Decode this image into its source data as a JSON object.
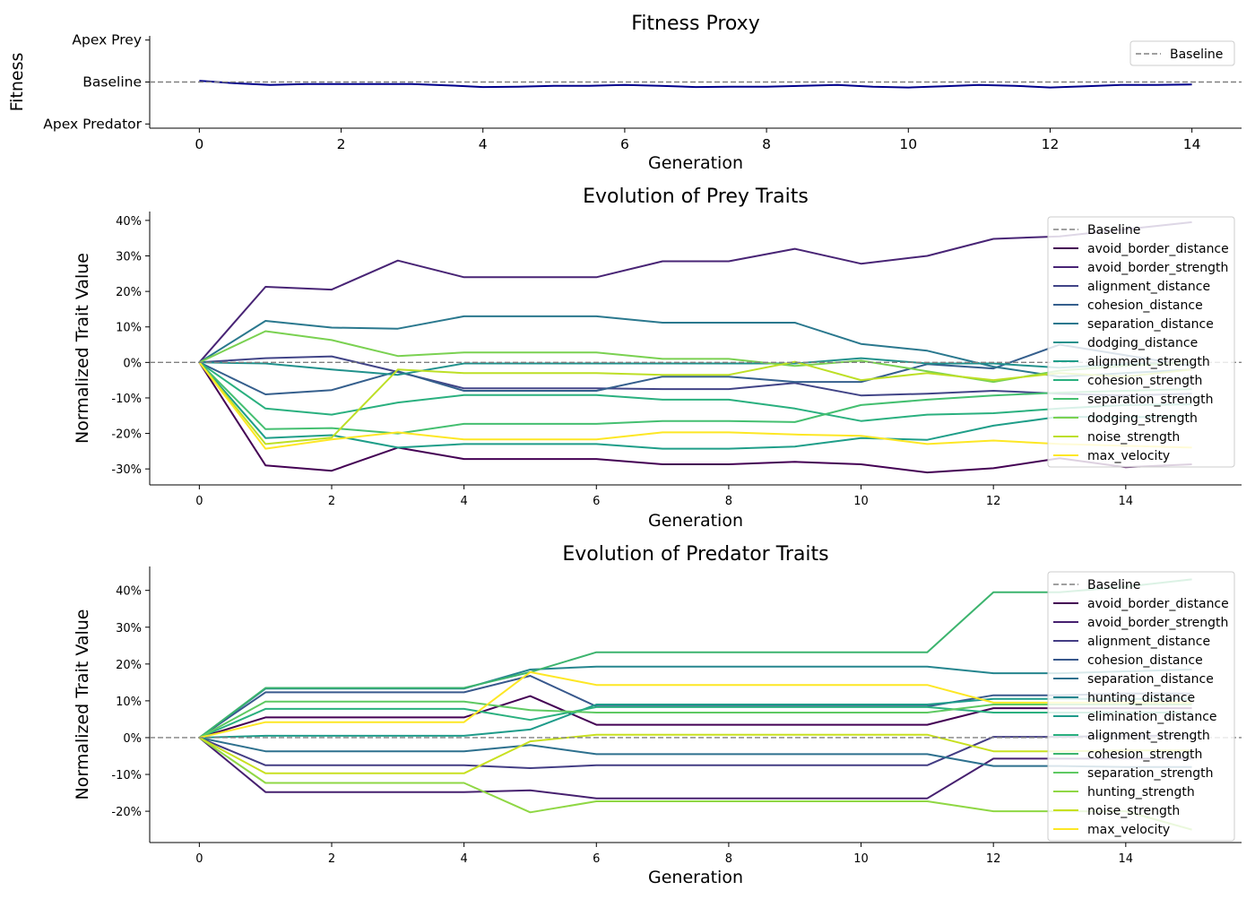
{
  "chart_data": [
    {
      "type": "line",
      "title": "Fitness Proxy",
      "xlabel": "Generation",
      "ylabel": "Fitness",
      "xlim": [
        -0.7,
        14.7
      ],
      "ylim": [
        -1.1,
        1.1
      ],
      "xticks": [
        0,
        2,
        4,
        6,
        8,
        10,
        12,
        14
      ],
      "yticks": [
        {
          "value": 1,
          "label": "Apex Prey"
        },
        {
          "value": 0,
          "label": "Baseline"
        },
        {
          "value": -1,
          "label": "Apex Predator"
        }
      ],
      "baseline": {
        "name": "Baseline",
        "value": 0,
        "color": "#808080"
      },
      "legend": "top-right",
      "series": [
        {
          "color": "#00008b",
          "x": [
            0,
            0.5,
            1,
            1.5,
            2,
            2.5,
            3,
            3.5,
            4,
            4.5,
            5,
            5.5,
            6,
            6.5,
            7,
            7.5,
            8,
            8.5,
            9,
            9.5,
            10,
            10.5,
            11,
            11.5,
            12,
            12.5,
            13,
            13.5,
            14
          ],
          "y": [
            0.03,
            -0.03,
            -0.07,
            -0.05,
            -0.05,
            -0.05,
            -0.05,
            -0.08,
            -0.12,
            -0.11,
            -0.09,
            -0.09,
            -0.07,
            -0.09,
            -0.12,
            -0.11,
            -0.11,
            -0.09,
            -0.07,
            -0.11,
            -0.13,
            -0.1,
            -0.07,
            -0.09,
            -0.13,
            -0.1,
            -0.07,
            -0.07,
            -0.06
          ]
        }
      ]
    },
    {
      "type": "line",
      "title": "Evolution of Prey Traits",
      "xlabel": "Generation",
      "ylabel": "Normalized Trait Value",
      "xlim": [
        -0.75,
        15.75
      ],
      "ylim": [
        -0.345,
        0.425
      ],
      "xticks": [
        0,
        2,
        4,
        6,
        8,
        10,
        12,
        14
      ],
      "yticks": [
        {
          "value": 0.4,
          "label": "40%"
        },
        {
          "value": 0.3,
          "label": "30%"
        },
        {
          "value": 0.2,
          "label": "20%"
        },
        {
          "value": 0.1,
          "label": "10%"
        },
        {
          "value": 0,
          "label": "0%"
        },
        {
          "value": -0.1,
          "label": "-10%"
        },
        {
          "value": -0.2,
          "label": "-20%"
        },
        {
          "value": -0.3,
          "label": "-30%"
        }
      ],
      "baseline": {
        "name": "Baseline",
        "value": 0,
        "color": "#808080"
      },
      "legend": "top-right",
      "x": [
        0,
        1,
        2,
        3,
        4,
        5,
        6,
        7,
        8,
        9,
        10,
        11,
        12,
        13,
        14,
        15
      ],
      "series": [
        {
          "name": "avoid_border_distance",
          "color": "#440154",
          "values": [
            0,
            -0.29,
            -0.305,
            -0.24,
            -0.272,
            -0.272,
            -0.272,
            -0.287,
            -0.287,
            -0.28,
            -0.287,
            -0.31,
            -0.298,
            -0.27,
            -0.295,
            -0.287
          ]
        },
        {
          "name": "avoid_border_strength",
          "color": "#482475",
          "values": [
            0,
            0.213,
            0.205,
            0.287,
            0.24,
            0.24,
            0.24,
            0.285,
            0.285,
            0.32,
            0.278,
            0.3,
            0.348,
            0.355,
            0.375,
            0.395
          ]
        },
        {
          "name": "alignment_distance",
          "color": "#414487",
          "values": [
            0,
            0.012,
            0.017,
            -0.027,
            -0.073,
            -0.073,
            -0.073,
            -0.075,
            -0.075,
            -0.058,
            -0.093,
            -0.088,
            -0.08,
            -0.088,
            -0.093,
            -0.088
          ]
        },
        {
          "name": "cohesion_distance",
          "color": "#355f8d",
          "values": [
            0,
            -0.09,
            -0.078,
            -0.025,
            -0.08,
            -0.08,
            -0.08,
            -0.04,
            -0.04,
            -0.055,
            -0.055,
            -0.005,
            -0.017,
            0.05,
            0.02,
            -0.01
          ]
        },
        {
          "name": "separation_distance",
          "color": "#2a788e",
          "values": [
            0,
            0.117,
            0.098,
            0.095,
            0.13,
            0.13,
            0.13,
            0.112,
            0.112,
            0.112,
            0.052,
            0.033,
            -0.012,
            -0.04,
            -0.03,
            -0.02
          ]
        },
        {
          "name": "dodging_distance",
          "color": "#21918c",
          "values": [
            0,
            -0.003,
            -0.02,
            -0.035,
            -0.003,
            -0.003,
            -0.003,
            -0.003,
            -0.003,
            -0.003,
            0.012,
            -0.003,
            -0.003,
            -0.015,
            -0.005,
            0
          ]
        },
        {
          "name": "alignment_strength",
          "color": "#1f9e89",
          "values": [
            0,
            -0.213,
            -0.205,
            -0.24,
            -0.23,
            -0.23,
            -0.23,
            -0.243,
            -0.243,
            -0.237,
            -0.213,
            -0.218,
            -0.178,
            -0.153,
            -0.155,
            -0.15
          ]
        },
        {
          "name": "cohesion_strength",
          "color": "#2ab07f",
          "values": [
            0,
            -0.13,
            -0.147,
            -0.113,
            -0.092,
            -0.092,
            -0.092,
            -0.105,
            -0.105,
            -0.13,
            -0.165,
            -0.147,
            -0.143,
            -0.13,
            -0.12,
            -0.118
          ]
        },
        {
          "name": "separation_strength",
          "color": "#44bf70",
          "values": [
            0,
            -0.188,
            -0.185,
            -0.2,
            -0.173,
            -0.173,
            -0.173,
            -0.165,
            -0.165,
            -0.168,
            -0.12,
            -0.105,
            -0.093,
            -0.085,
            -0.08,
            -0.075
          ]
        },
        {
          "name": "dodging_strength",
          "color": "#7ad151",
          "values": [
            0,
            0.088,
            0.063,
            0.018,
            0.028,
            0.028,
            0.028,
            0.01,
            0.01,
            -0.01,
            0.005,
            -0.025,
            -0.055,
            -0.023,
            -0.01,
            0
          ]
        },
        {
          "name": "noise_strength",
          "color": "#bddf26",
          "values": [
            0,
            -0.23,
            -0.212,
            -0.02,
            -0.03,
            -0.03,
            -0.03,
            -0.035,
            -0.035,
            0.002,
            -0.05,
            -0.03,
            -0.05,
            -0.03,
            -0.04,
            -0.02
          ]
        },
        {
          "name": "max_velocity",
          "color": "#fde725",
          "values": [
            0,
            -0.243,
            -0.217,
            -0.197,
            -0.217,
            -0.217,
            -0.217,
            -0.197,
            -0.197,
            -0.203,
            -0.207,
            -0.23,
            -0.22,
            -0.23,
            -0.235,
            -0.24
          ]
        }
      ]
    },
    {
      "type": "line",
      "title": "Evolution of Predator Traits",
      "xlabel": "Generation",
      "ylabel": "Normalized Trait Value",
      "xlim": [
        -0.75,
        15.75
      ],
      "ylim": [
        -0.285,
        0.465
      ],
      "xticks": [
        0,
        2,
        4,
        6,
        8,
        10,
        12,
        14
      ],
      "yticks": [
        {
          "value": 0.4,
          "label": "40%"
        },
        {
          "value": 0.3,
          "label": "30%"
        },
        {
          "value": 0.2,
          "label": "20%"
        },
        {
          "value": 0.1,
          "label": "10%"
        },
        {
          "value": 0,
          "label": "0%"
        },
        {
          "value": -0.1,
          "label": "-10%"
        },
        {
          "value": -0.2,
          "label": "-20%"
        }
      ],
      "baseline": {
        "name": "Baseline",
        "value": 0,
        "color": "#808080"
      },
      "legend": "top-right",
      "x": [
        0,
        1,
        2,
        3,
        4,
        5,
        6,
        7,
        8,
        9,
        10,
        11,
        12,
        13,
        14,
        15
      ],
      "series": [
        {
          "name": "avoid_border_distance",
          "color": "#440154",
          "values": [
            0,
            0.055,
            0.055,
            0.055,
            0.055,
            0.113,
            0.035,
            0.035,
            0.035,
            0.035,
            0.035,
            0.035,
            0.08,
            0.08,
            0.08,
            0.08
          ]
        },
        {
          "name": "avoid_border_strength",
          "color": "#46206f",
          "values": [
            0,
            -0.148,
            -0.148,
            -0.148,
            -0.148,
            -0.143,
            -0.165,
            -0.165,
            -0.165,
            -0.165,
            -0.165,
            -0.165,
            -0.057,
            -0.057,
            -0.057,
            -0.057
          ]
        },
        {
          "name": "alignment_distance",
          "color": "#433d84",
          "values": [
            0,
            -0.075,
            -0.075,
            -0.075,
            -0.075,
            -0.083,
            -0.075,
            -0.075,
            -0.075,
            -0.075,
            -0.075,
            -0.075,
            0.002,
            0.002,
            0.005,
            0.005
          ]
        },
        {
          "name": "cohesion_distance",
          "color": "#38588c",
          "values": [
            0,
            0.123,
            0.123,
            0.123,
            0.123,
            0.168,
            0.085,
            0.085,
            0.085,
            0.085,
            0.085,
            0.085,
            0.115,
            0.115,
            0.12,
            0.12
          ]
        },
        {
          "name": "separation_distance",
          "color": "#2d708e",
          "values": [
            0,
            -0.037,
            -0.037,
            -0.037,
            -0.037,
            -0.02,
            -0.045,
            -0.045,
            -0.045,
            -0.045,
            -0.045,
            -0.045,
            -0.077,
            -0.077,
            -0.08,
            -0.08
          ]
        },
        {
          "name": "hunting_distance",
          "color": "#25858e",
          "values": [
            0,
            0.133,
            0.133,
            0.133,
            0.133,
            0.185,
            0.193,
            0.193,
            0.193,
            0.193,
            0.193,
            0.193,
            0.175,
            0.175,
            0.18,
            0.185
          ]
        },
        {
          "name": "elimination_distance",
          "color": "#1e9b8a",
          "values": [
            0,
            0.005,
            0.005,
            0.005,
            0.005,
            0.022,
            0.09,
            0.09,
            0.09,
            0.09,
            0.09,
            0.09,
            0.105,
            0.105,
            0.105,
            0.105
          ]
        },
        {
          "name": "alignment_strength",
          "color": "#2ab07f",
          "values": [
            0,
            0.078,
            0.078,
            0.078,
            0.078,
            0.048,
            0.083,
            0.083,
            0.083,
            0.083,
            0.083,
            0.083,
            0.068,
            0.068,
            0.068,
            0.068
          ]
        },
        {
          "name": "cohesion_strength",
          "color": "#3cb46e",
          "values": [
            0,
            0.135,
            0.135,
            0.135,
            0.135,
            0.178,
            0.232,
            0.232,
            0.232,
            0.232,
            0.232,
            0.232,
            0.395,
            0.395,
            0.41,
            0.43
          ]
        },
        {
          "name": "separation_strength",
          "color": "#5ec962",
          "values": [
            0,
            0.098,
            0.098,
            0.098,
            0.098,
            0.075,
            0.068,
            0.068,
            0.068,
            0.068,
            0.068,
            0.068,
            0.09,
            0.09,
            0.09,
            0.09
          ]
        },
        {
          "name": "hunting_strength",
          "color": "#8fd744",
          "values": [
            0,
            -0.123,
            -0.123,
            -0.123,
            -0.123,
            -0.203,
            -0.173,
            -0.173,
            -0.173,
            -0.173,
            -0.173,
            -0.173,
            -0.2,
            -0.2,
            -0.2,
            -0.25
          ]
        },
        {
          "name": "noise_strength",
          "color": "#c8e020",
          "values": [
            0,
            -0.097,
            -0.097,
            -0.097,
            -0.097,
            -0.01,
            0.008,
            0.008,
            0.008,
            0.008,
            0.008,
            0.008,
            -0.037,
            -0.037,
            -0.035,
            -0.035
          ]
        },
        {
          "name": "max_velocity",
          "color": "#fde725",
          "values": [
            0,
            0.042,
            0.042,
            0.042,
            0.042,
            0.178,
            0.143,
            0.143,
            0.143,
            0.143,
            0.143,
            0.143,
            0.095,
            0.095,
            0.095,
            0.095
          ]
        }
      ]
    }
  ]
}
